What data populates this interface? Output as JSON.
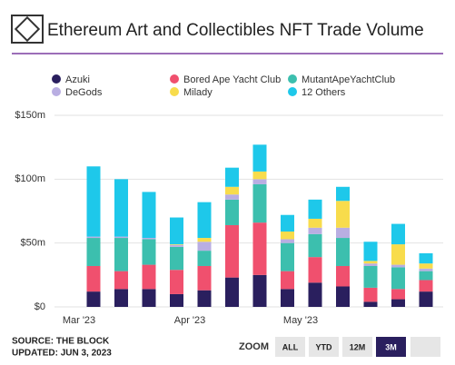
{
  "chart_data": {
    "type": "stacked_bar",
    "title": "Ethereum Art and Collectibles NFT Trade Volume",
    "source": "SOURCE: THE BLOCK",
    "updated": "UPDATED: JUN 3, 2023",
    "zoom_label": "ZOOM",
    "zoom_buttons": [
      "ALL",
      "YTD",
      "12M",
      "3M",
      null
    ],
    "zoom_active": 3,
    "categories": [
      "Mar '23",
      null,
      null,
      null,
      "Apr '23",
      null,
      null,
      null,
      "May '23",
      null,
      null,
      null,
      null
    ],
    "ylim": [
      0,
      150
    ],
    "yticks": [
      {
        "value": 0,
        "label": "$0"
      },
      {
        "value": 50,
        "label": "$50m"
      },
      {
        "value": 100,
        "label": "$100m"
      },
      {
        "value": 150,
        "label": "$150m"
      }
    ],
    "grid": true,
    "series": [
      {
        "name": "Azuki",
        "color": "#2a1f5e",
        "values": [
          12,
          14,
          14,
          10,
          13,
          23,
          25,
          14,
          19,
          16,
          4,
          6,
          12
        ]
      },
      {
        "name": "Bored Ape Yacht Club",
        "color": "#f0506e",
        "values": [
          20,
          14,
          19,
          19,
          19,
          41,
          41,
          14,
          20,
          16,
          11,
          8,
          9
        ]
      },
      {
        "name": "MutantApeYachtClub",
        "color": "#3cbfae",
        "values": [
          22,
          26,
          20,
          18,
          12,
          20,
          30,
          22,
          18,
          22,
          17,
          17,
          7
        ]
      },
      {
        "name": "DeGods",
        "color": "#b9aee2",
        "values": [
          1,
          1,
          1,
          1.5,
          7,
          4,
          4,
          3,
          5,
          8,
          2,
          2,
          2
        ]
      },
      {
        "name": "Milady",
        "color": "#f8dc4c",
        "values": [
          0,
          0,
          0,
          0.5,
          3,
          6,
          6,
          6,
          7,
          21,
          2,
          16,
          4
        ]
      },
      {
        "name": "12 Others",
        "color": "#1ec8ea",
        "values": [
          55,
          45,
          36,
          21,
          28,
          15,
          21,
          13,
          15,
          11,
          15,
          16,
          8
        ]
      }
    ]
  }
}
